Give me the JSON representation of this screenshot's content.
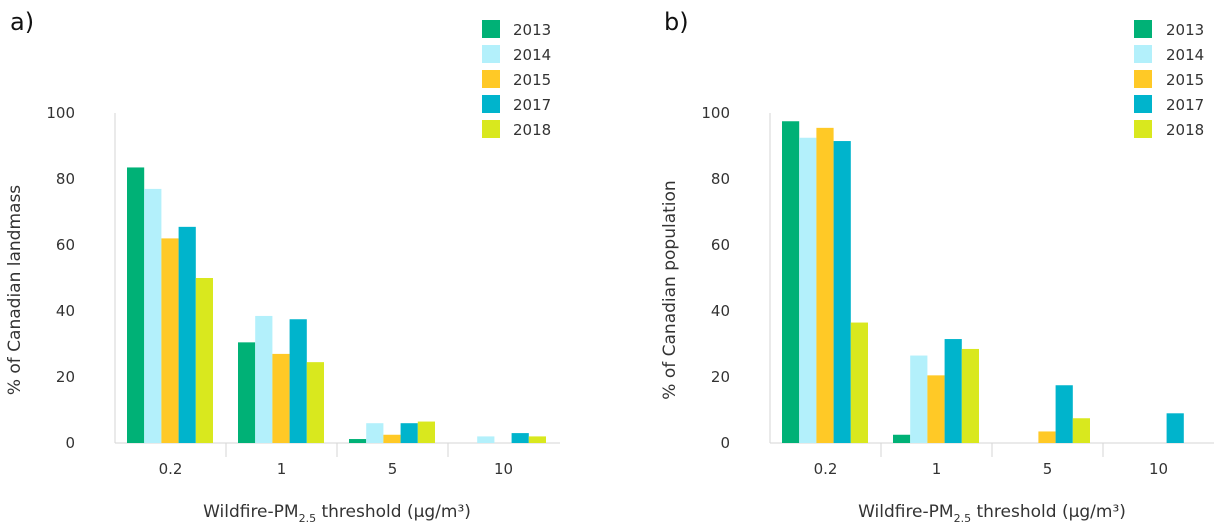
{
  "chart_data": [
    {
      "type": "bar",
      "panel_label": "a)",
      "categories": [
        "0.2",
        "1",
        "5",
        "10"
      ],
      "xlabel": "Wildfire-PM",
      "xlabel_sub": "2.5",
      "xlabel_suffix": " threshold (µg/m³)",
      "ylabel": "% of Canadian landmass",
      "ylim": [
        0,
        100
      ],
      "yticks": [
        0,
        20,
        40,
        60,
        80,
        100
      ],
      "legend_position": "top-right",
      "series": [
        {
          "name": "2013",
          "color": "#00b176",
          "values": [
            83.5,
            30.5,
            1.2,
            0
          ]
        },
        {
          "name": "2014",
          "color": "#b3f0fb",
          "values": [
            77,
            38.5,
            6,
            2
          ]
        },
        {
          "name": "2015",
          "color": "#ffc926",
          "values": [
            62,
            27,
            2.5,
            0
          ]
        },
        {
          "name": "2017",
          "color": "#00b4cc",
          "values": [
            65.5,
            37.5,
            6,
            3
          ]
        },
        {
          "name": "2018",
          "color": "#d9e81e",
          "values": [
            50,
            24.5,
            6.5,
            2
          ]
        }
      ]
    },
    {
      "type": "bar",
      "panel_label": "b)",
      "categories": [
        "0.2",
        "1",
        "5",
        "10"
      ],
      "xlabel": "Wildfire-PM",
      "xlabel_sub": "2.5",
      "xlabel_suffix": " threshold (µg/m³)",
      "ylabel": "% of Canadian population",
      "ylim": [
        0,
        100
      ],
      "yticks": [
        0,
        20,
        40,
        60,
        80,
        100
      ],
      "legend_position": "top-right",
      "series": [
        {
          "name": "2013",
          "color": "#00b176",
          "values": [
            97.5,
            2.5,
            0,
            0
          ]
        },
        {
          "name": "2014",
          "color": "#b3f0fb",
          "values": [
            92.5,
            26.5,
            0,
            0
          ]
        },
        {
          "name": "2015",
          "color": "#ffc926",
          "values": [
            95.5,
            20.5,
            3.5,
            0
          ]
        },
        {
          "name": "2017",
          "color": "#00b4cc",
          "values": [
            91.5,
            31.5,
            17.5,
            9
          ]
        },
        {
          "name": "2018",
          "color": "#d9e81e",
          "values": [
            36.5,
            28.5,
            7.5,
            0
          ]
        }
      ]
    }
  ]
}
